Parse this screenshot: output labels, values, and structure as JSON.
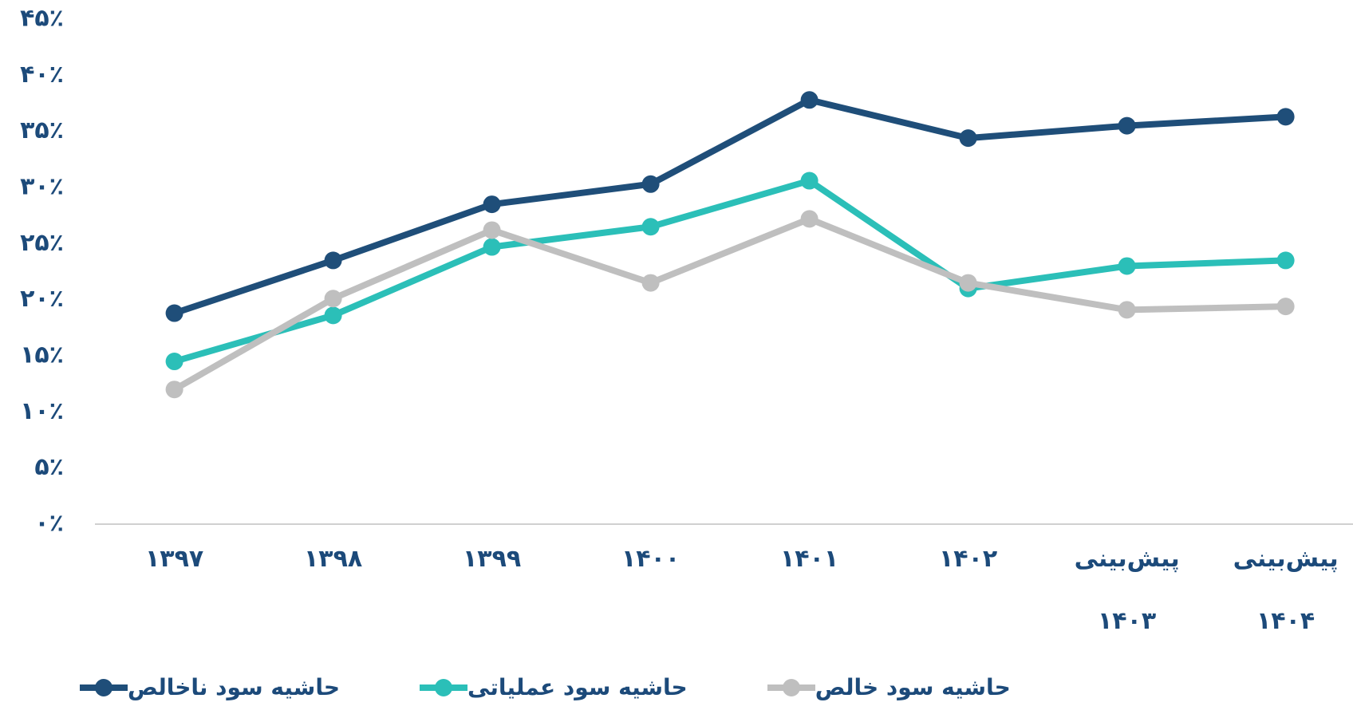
{
  "chart_data": {
    "type": "line",
    "categories": [
      "۱۳۹۷",
      "۱۳۹۸",
      "۱۳۹۹",
      "۱۴۰۰",
      "۱۴۰۱",
      "۱۴۰۲",
      "پیش‌بینی ۱۴۰۳",
      "پیش‌بینی ۱۴۰۴"
    ],
    "series": [
      {
        "name": "حاشیه سود ناخالص",
        "color": "#1f4e79",
        "values": [
          18.8,
          23.5,
          28.5,
          30.3,
          37.8,
          34.4,
          35.5,
          36.3
        ]
      },
      {
        "name": "حاشیه سود عملیاتی",
        "color": "#2bbfb8",
        "values": [
          14.5,
          18.6,
          24.7,
          26.5,
          30.6,
          21.0,
          23.0,
          23.5
        ]
      },
      {
        "name": "حاشیه سود خالص",
        "color": "#bfbfbf",
        "values": [
          12.0,
          20.1,
          26.2,
          21.5,
          27.2,
          21.5,
          19.1,
          19.4
        ]
      }
    ],
    "ylim": [
      0,
      45
    ],
    "yticks": [
      {
        "value": 0,
        "label": "۰٪"
      },
      {
        "value": 5,
        "label": "۵٪"
      },
      {
        "value": 10,
        "label": "۱۰٪"
      },
      {
        "value": 15,
        "label": "۱۵٪"
      },
      {
        "value": 20,
        "label": "۲۰٪"
      },
      {
        "value": 25,
        "label": "۲۵٪"
      },
      {
        "value": 30,
        "label": "۳۰٪"
      },
      {
        "value": 35,
        "label": "۳۵٪"
      },
      {
        "value": 40,
        "label": "۴۰٪"
      },
      {
        "value": 45,
        "label": "۴۵٪"
      }
    ],
    "grid": false,
    "legend": "bottom"
  }
}
